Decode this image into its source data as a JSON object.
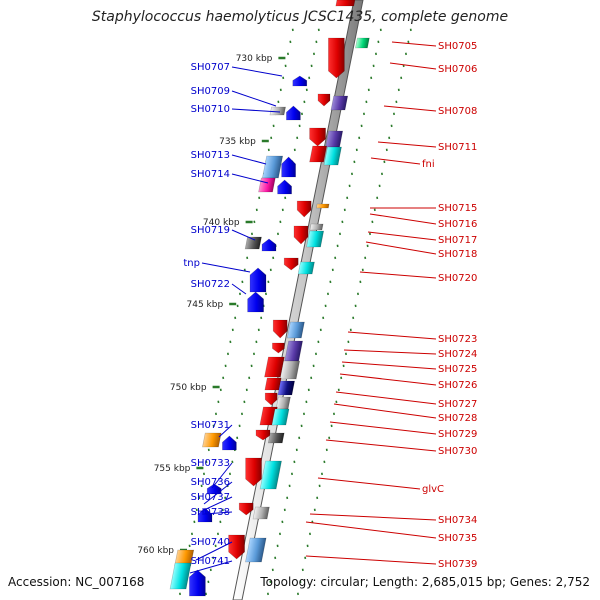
{
  "title": "Staphylococcus haemolyticus JCSC1435, complete genome",
  "footer": {
    "accession": "Accession: NC_007168",
    "topology": "Topology: circular; Length: 2,685,015 bp; Genes: 2,752"
  },
  "colors": {
    "left_label": "#0000cc",
    "right_label": "#cc0000",
    "tick": "#2a7a2a"
  },
  "scale_ticks": [
    "730 kbp",
    "735 kbp",
    "740 kbp",
    "745 kbp",
    "750 kbp",
    "755 kbp",
    "760 kbp"
  ],
  "left_labels": [
    "SH0707",
    "SH0709",
    "SH0710",
    "SH0713",
    "SH0714",
    "SH0719",
    "tnp",
    "SH0722",
    "SH0731",
    "SH0733",
    "SH0736",
    "SH0737",
    "SH0738",
    "SH0740",
    "SH0741"
  ],
  "right_labels": [
    "SH0705",
    "SH0706",
    "SH0708",
    "SH0711",
    "fni",
    "SH0715",
    "SH0716",
    "SH0717",
    "SH0718",
    "SH0720",
    "SH0723",
    "SH0724",
    "SH0725",
    "SH0726",
    "SH0727",
    "SH0728",
    "SH0729",
    "SH0730",
    "glvC",
    "SH0734",
    "SH0735",
    "SH0739"
  ]
}
